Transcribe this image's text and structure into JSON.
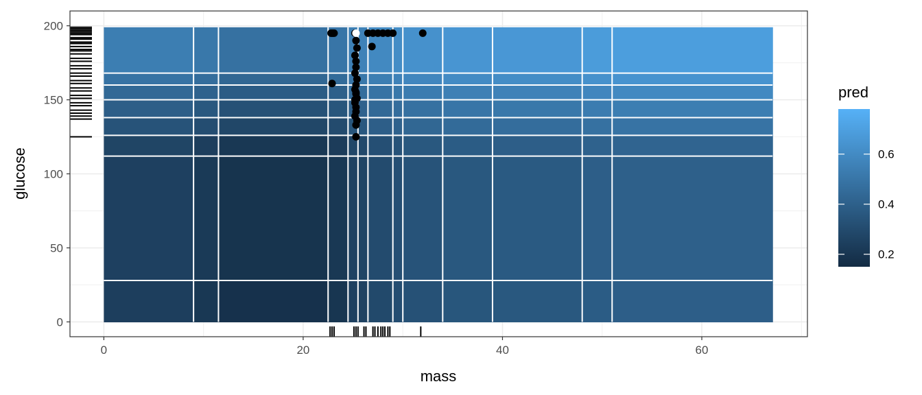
{
  "chart_data": {
    "type": "heatmap",
    "title": "",
    "xlabel": "mass",
    "ylabel": "glucose",
    "xlim": [
      -3.4,
      70.6
    ],
    "ylim": [
      -10,
      210
    ],
    "x_ticks": [
      0,
      20,
      40,
      60
    ],
    "y_ticks": [
      0,
      50,
      100,
      150,
      200
    ],
    "grid": true,
    "theme": "bw",
    "legend": {
      "title": "pred",
      "placement": "right",
      "range": [
        0.15,
        0.78
      ],
      "ticks": [
        0.2,
        0.4,
        0.6
      ],
      "colors": {
        "low": "#132B43",
        "high": "#56B1F7"
      }
    },
    "surface": {
      "mass_extent": [
        0,
        67.1
      ],
      "glucose_extent": [
        0,
        199
      ],
      "mass_breaks": [
        0,
        9,
        11.5,
        22.5,
        24.5,
        25.5,
        26.5,
        29,
        30,
        34,
        39,
        48,
        51,
        67.1
      ],
      "mass_effect": [
        0.06,
        0.03,
        0.0,
        0.02,
        0.07,
        0.08,
        0.11,
        0.13,
        0.15,
        0.17,
        0.18,
        0.2,
        0.21
      ],
      "glucose_breaks": [
        0,
        28,
        112,
        126,
        138,
        150,
        160,
        168,
        199
      ],
      "glucose_effect": [
        0.0,
        0.01,
        0.03,
        0.1,
        0.15,
        0.2,
        0.25,
        0.3
      ],
      "base": 0.18
    },
    "contour_color": "#ffffff",
    "points": {
      "color": "#000000",
      "highlight_color": "#ffffff",
      "highlight": [
        25.3,
        195
      ],
      "mass": [
        23.0,
        22.8,
        22.9,
        23.1,
        25.2,
        25.3,
        25.4,
        25.2,
        25.3,
        25.3,
        25.2,
        25.4,
        25.3,
        25.2,
        25.3,
        25.4,
        25.2,
        25.3,
        25.3,
        25.2,
        25.4,
        25.3,
        25.2,
        25.3,
        25.3,
        26.5,
        27.0,
        27.5,
        28.0,
        28.5,
        29.0,
        32.0,
        26.9,
        22.9
      ],
      "glucose": [
        195,
        195,
        195,
        195,
        195,
        190,
        185,
        180,
        176,
        172,
        168,
        164,
        160,
        157,
        154,
        151,
        148,
        145,
        142,
        139,
        136,
        133,
        150,
        155,
        125,
        195,
        195,
        195,
        195,
        195,
        195,
        195,
        186,
        161
      ]
    },
    "rug": {
      "color": "#000000",
      "mass": [
        22.7,
        22.9,
        23.1,
        25.1,
        25.3,
        25.5,
        26.1,
        26.3,
        27.0,
        27.2,
        27.5,
        27.8,
        28.0,
        28.2,
        28.5,
        28.7,
        31.8
      ],
      "glucose": [
        125,
        137,
        139,
        141,
        143,
        146,
        148,
        151,
        153,
        156,
        158,
        161,
        163,
        166,
        168,
        171,
        173,
        176,
        178,
        181,
        183,
        184,
        186,
        188,
        189,
        191,
        192,
        194,
        195,
        196,
        197,
        198,
        199
      ]
    }
  }
}
